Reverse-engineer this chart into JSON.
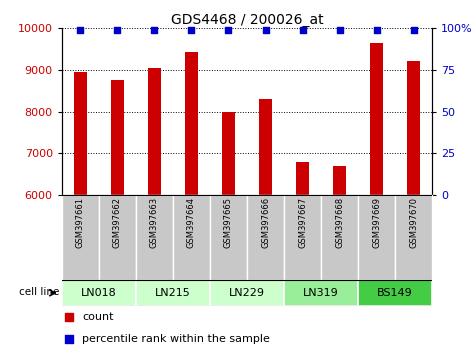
{
  "title": "GDS4468 / 200026_at",
  "samples": [
    "GSM397661",
    "GSM397662",
    "GSM397663",
    "GSM397664",
    "GSM397665",
    "GSM397666",
    "GSM397667",
    "GSM397668",
    "GSM397669",
    "GSM397670"
  ],
  "counts": [
    8960,
    8750,
    9050,
    9420,
    7990,
    8290,
    6790,
    6680,
    9650,
    9210
  ],
  "percentile_ranks": [
    99,
    99,
    99,
    99,
    99,
    99,
    99,
    99,
    99,
    99
  ],
  "ylim_left": [
    6000,
    10000
  ],
  "ylim_right": [
    0,
    100
  ],
  "right_ticks": [
    0,
    25,
    50,
    75,
    100
  ],
  "right_tick_labels": [
    "0",
    "25",
    "50",
    "75",
    "100%"
  ],
  "left_ticks": [
    6000,
    7000,
    8000,
    9000,
    10000
  ],
  "bar_color": "#cc0000",
  "percentile_color": "#0000cc",
  "bar_width": 0.35,
  "cell_lines": [
    {
      "name": "LN018",
      "samples": [
        0,
        1
      ],
      "color": "#ccffcc"
    },
    {
      "name": "LN215",
      "samples": [
        2,
        3
      ],
      "color": "#ccffcc"
    },
    {
      "name": "LN229",
      "samples": [
        4,
        5
      ],
      "color": "#ccffcc"
    },
    {
      "name": "LN319",
      "samples": [
        6,
        7
      ],
      "color": "#99ee99"
    },
    {
      "name": "BS149",
      "samples": [
        8,
        9
      ],
      "color": "#44cc44"
    }
  ],
  "tick_label_color_left": "#cc0000",
  "tick_label_color_right": "#0000cc",
  "sample_box_color": "#c8c8c8",
  "sample_box_edge": "#aaaaaa"
}
